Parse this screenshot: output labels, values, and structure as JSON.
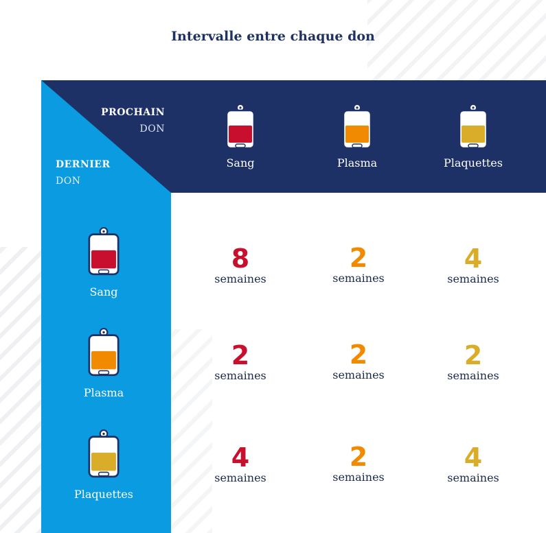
{
  "title": "Intervalle entre chaque don",
  "header": {
    "next_label_strong": "PROCHAIN",
    "next_label_light": "DON",
    "last_label_strong": "DERNIER",
    "last_label_light": "DON"
  },
  "columns": [
    {
      "label": "Sang",
      "icon": "blood-bag-icon",
      "color": "#c8102e"
    },
    {
      "label": "Plasma",
      "icon": "plasma-bag-icon",
      "color": "#f28a00"
    },
    {
      "label": "Plaquettes",
      "icon": "platelets-bag-icon",
      "color": "#d9ad2a"
    }
  ],
  "rows": [
    {
      "label": "Sang",
      "icon": "blood-bag-icon",
      "color": "#c8102e",
      "cells": [
        {
          "value": "8",
          "unit": "semaines"
        },
        {
          "value": "2",
          "unit": "semaines"
        },
        {
          "value": "4",
          "unit": "semaines"
        }
      ]
    },
    {
      "label": "Plasma",
      "icon": "plasma-bag-icon",
      "color": "#f28a00",
      "cells": [
        {
          "value": "2",
          "unit": "semaines"
        },
        {
          "value": "2",
          "unit": "semaines"
        },
        {
          "value": "2",
          "unit": "semaines"
        }
      ]
    },
    {
      "label": "Plaquettes",
      "icon": "platelets-bag-icon",
      "color": "#d9ad2a",
      "cells": [
        {
          "value": "4",
          "unit": "semaines"
        },
        {
          "value": "2",
          "unit": "semaines"
        },
        {
          "value": "4",
          "unit": "semaines"
        }
      ]
    }
  ],
  "colors": {
    "navy": "#1e3166",
    "blue": "#0b9be0",
    "title": "#1f3264"
  }
}
